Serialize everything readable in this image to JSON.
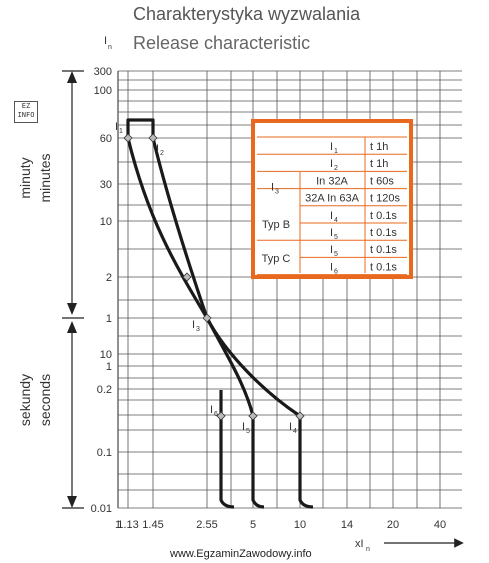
{
  "title": "Charakterystyka wyzwalania",
  "subtitle": "Release characteristic",
  "watermark": "www.EgzaminZawodowy.info",
  "logo_text": "EZ INFO",
  "colors": {
    "grid": "#555555",
    "curve": "#1a1a1a",
    "table_border": "#e8691e",
    "text": "#333333"
  },
  "chart_data": {
    "type": "line",
    "title": "Charakterystyka wyzwalania",
    "subtitle": "Release characteristic",
    "x_label": "xIn",
    "y_label": "In",
    "x_ticks": [
      "1",
      "1.13",
      "1.45",
      "2.55",
      "5",
      "10",
      "14",
      "20",
      "40"
    ],
    "y_ticks_minutes": [
      "300",
      "100",
      "60",
      "30",
      "10",
      "2",
      "1"
    ],
    "y_ticks_seconds": [
      "10",
      "1",
      "0.2",
      "0.1",
      "0.01"
    ],
    "axis_sections": [
      {
        "pl": "minuty",
        "en": "minutes"
      },
      {
        "pl": "sekundy",
        "en": "seconds"
      }
    ],
    "series": [
      {
        "values": [
          {
            "x": 1.13,
            "y": "60 min"
          },
          {
            "x": 1.13,
            "y": "69 min"
          },
          {
            "x": 1.45,
            "y": "69 min"
          },
          {
            "x": 2.55,
            "y": "2 min"
          },
          {
            "x": 5,
            "y": "0.2 s"
          },
          {
            "x": 10,
            "y": "0.15 s"
          },
          {
            "x": 10,
            "y": "0.01 s"
          }
        ]
      },
      {
        "values": [
          {
            "x": 1.13,
            "y": "60 min"
          },
          {
            "x": 2.55,
            "y": "1 min"
          },
          {
            "x": 5,
            "y": "0.15 s"
          },
          {
            "x": 5,
            "y": "0.01 s"
          }
        ]
      }
    ],
    "point_labels": [
      {
        "text": "I",
        "sub": "1",
        "x": 1.13,
        "y": "60 min"
      },
      {
        "text": "I",
        "sub": "2",
        "x": 1.45,
        "y": "60 min"
      },
      {
        "text": "I",
        "sub": "3",
        "x": 2.55,
        "y": "1 min"
      },
      {
        "text": "I",
        "sub": "6",
        "x": 3.5,
        "y": "0.15 s"
      },
      {
        "text": "I",
        "sub": "5",
        "x": 5,
        "y": "0.15 s"
      },
      {
        "text": "I",
        "sub": "4",
        "x": 10,
        "y": "0.15 s"
      }
    ],
    "legend_table": {
      "rows": [
        {
          "group": "",
          "label": "I",
          "sub": "1",
          "cond": "",
          "t": "t  1h"
        },
        {
          "group": "",
          "label": "I",
          "sub": "2",
          "cond": "",
          "t": "t  1h"
        },
        {
          "group": "I3",
          "label": "",
          "sub": "",
          "cond": "In  32A",
          "t": "t  60s"
        },
        {
          "group": "",
          "label": "",
          "sub": "",
          "cond": "32A In 63A",
          "t": "t  120s"
        },
        {
          "group": "Typ B",
          "label": "I",
          "sub": "4",
          "cond": "",
          "t": "t  0.1s"
        },
        {
          "group": "",
          "label": "I",
          "sub": "5",
          "cond": "",
          "t": "t  0.1s"
        },
        {
          "group": "Typ C",
          "label": "I",
          "sub": "5",
          "cond": "",
          "t": "t  0.1s"
        },
        {
          "group": "",
          "label": "I",
          "sub": "6",
          "cond": "",
          "t": "t  0.1s"
        }
      ]
    }
  }
}
